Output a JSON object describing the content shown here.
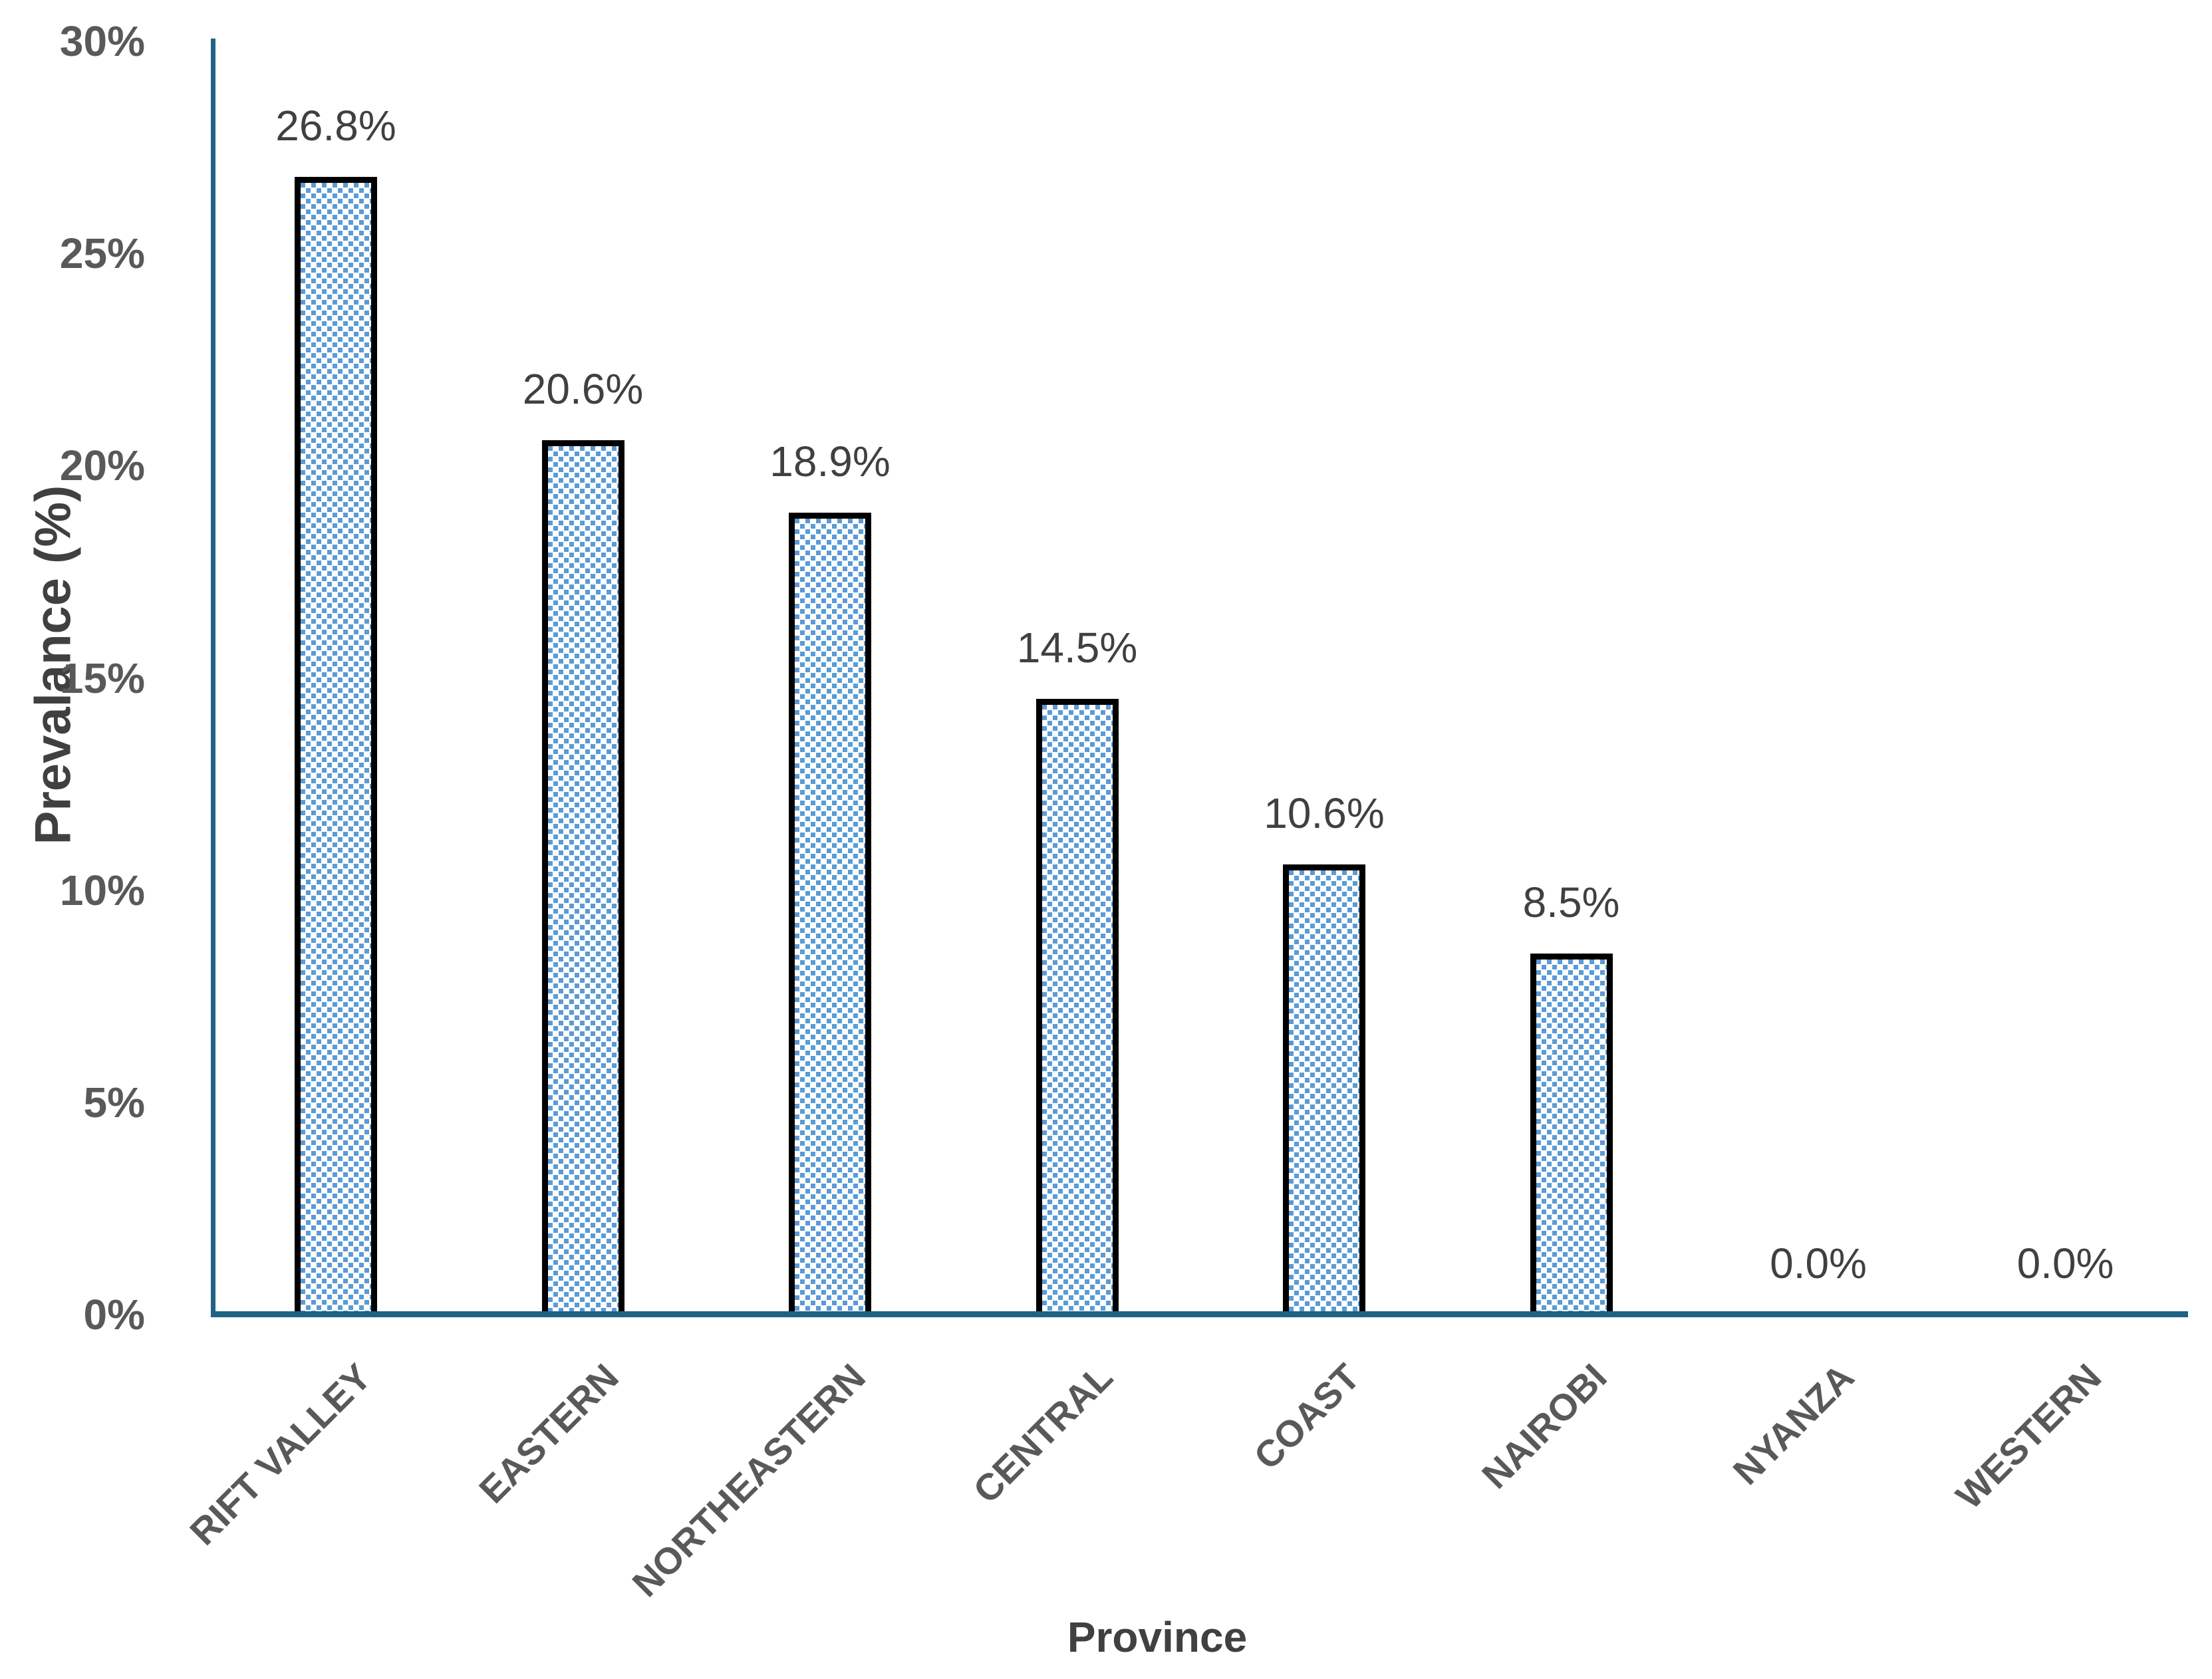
{
  "chart_data": {
    "type": "bar",
    "title": "",
    "xlabel": "Province",
    "ylabel": "Prevalance (%)",
    "categories": [
      "RIFT VALLEY",
      "EASTERN",
      "NORTHEASTERN",
      "CENTRAL",
      "COAST",
      "NAIROBI",
      "NYANZA",
      "WESTERN"
    ],
    "values": [
      26.8,
      20.6,
      18.9,
      14.5,
      10.6,
      8.5,
      0.0,
      0.0
    ],
    "value_labels": [
      "26.8%",
      "20.6%",
      "18.9%",
      "14.5%",
      "10.6%",
      "8.5%",
      "0.0%",
      "0.0%"
    ],
    "ylim": [
      0,
      30
    ],
    "yticks": [
      {
        "value": 0,
        "label": "0%"
      },
      {
        "value": 5,
        "label": "5%"
      },
      {
        "value": 10,
        "label": "10%"
      },
      {
        "value": 15,
        "label": "15%"
      },
      {
        "value": 20,
        "label": "20%"
      },
      {
        "value": 25,
        "label": "25%"
      },
      {
        "value": 30,
        "label": "30%"
      }
    ],
    "grid": "off",
    "legend": "none",
    "bar_pattern": "diagonal-checker",
    "colors": {
      "bar_fill": "#5B9BD5",
      "bar_pattern_bg": "#FFFFFF",
      "bar_border": "#000000",
      "axis_line": "#1D6484",
      "tick_text": "#595959",
      "category_text": "#595959",
      "data_label_text": "#404040",
      "axis_title_text": "#404040"
    }
  }
}
